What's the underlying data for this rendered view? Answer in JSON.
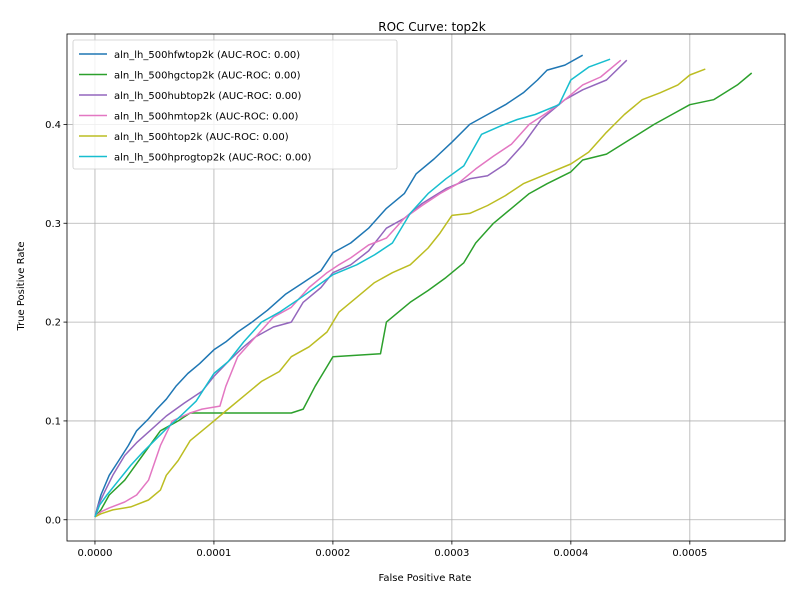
{
  "chart_data": {
    "type": "line",
    "title": "ROC Curve: top2k",
    "xlabel": "False Positive Rate",
    "ylabel": "True Positive Rate",
    "xlim": [
      -2.35e-05,
      0.00058
    ],
    "ylim": [
      -0.0215,
      0.4915
    ],
    "xticks": [
      0.0,
      0.0001,
      0.0002,
      0.0003,
      0.0004,
      0.0005
    ],
    "xtick_labels": [
      "0.0000",
      "0.0001",
      "0.0002",
      "0.0003",
      "0.0004",
      "0.0005"
    ],
    "yticks": [
      0.0,
      0.1,
      0.2,
      0.3,
      0.4
    ],
    "ytick_labels": [
      "0.0",
      "0.1",
      "0.2",
      "0.3",
      "0.4"
    ],
    "grid": true,
    "legend_position": "top-left",
    "series": [
      {
        "name": "aln_lh_500hfwtop2k (AUC-ROC: 0.00)",
        "color": "#1f77b4",
        "points": [
          [
            0.0,
            0.003
          ],
          [
            2e-06,
            0.012
          ],
          [
            5e-06,
            0.025
          ],
          [
            1.2e-05,
            0.045
          ],
          [
            2e-05,
            0.06
          ],
          [
            2.8e-05,
            0.075
          ],
          [
            3.5e-05,
            0.09
          ],
          [
            4.5e-05,
            0.102
          ],
          [
            5.2e-05,
            0.112
          ],
          [
            6e-05,
            0.122
          ],
          [
            6.8e-05,
            0.135
          ],
          [
            7.8e-05,
            0.148
          ],
          [
            8.8e-05,
            0.158
          ],
          [
            0.0001,
            0.172
          ],
          [
            0.00011,
            0.18
          ],
          [
            0.00012,
            0.19
          ],
          [
            0.000132,
            0.2
          ],
          [
            0.000145,
            0.212
          ],
          [
            0.00016,
            0.228
          ],
          [
            0.000175,
            0.24
          ],
          [
            0.00019,
            0.252
          ],
          [
            0.0002,
            0.27
          ],
          [
            0.000215,
            0.28
          ],
          [
            0.00023,
            0.295
          ],
          [
            0.000245,
            0.315
          ],
          [
            0.00026,
            0.33
          ],
          [
            0.00027,
            0.35
          ],
          [
            0.000285,
            0.365
          ],
          [
            0.0003,
            0.382
          ],
          [
            0.000315,
            0.4
          ],
          [
            0.00033,
            0.41
          ],
          [
            0.000345,
            0.42
          ],
          [
            0.00036,
            0.432
          ],
          [
            0.000372,
            0.445
          ],
          [
            0.00038,
            0.455
          ],
          [
            0.000395,
            0.46
          ],
          [
            0.00041,
            0.47
          ]
        ]
      },
      {
        "name": "aln_lh_500hgctop2k (AUC-ROC: 0.00)",
        "color": "#2ca02c",
        "points": [
          [
            0.0,
            0.003
          ],
          [
            5e-06,
            0.01
          ],
          [
            1.2e-05,
            0.025
          ],
          [
            2.5e-05,
            0.04
          ],
          [
            4e-05,
            0.065
          ],
          [
            5.5e-05,
            0.09
          ],
          [
            7e-05,
            0.1
          ],
          [
            8e-05,
            0.108
          ],
          [
            0.0001,
            0.108
          ],
          [
            0.00013,
            0.108
          ],
          [
            0.000165,
            0.108
          ],
          [
            0.000175,
            0.112
          ],
          [
            0.000185,
            0.135
          ],
          [
            0.000195,
            0.155
          ],
          [
            0.0002,
            0.165
          ],
          [
            0.00024,
            0.168
          ],
          [
            0.000245,
            0.2
          ],
          [
            0.000255,
            0.21
          ],
          [
            0.000265,
            0.22
          ],
          [
            0.00028,
            0.232
          ],
          [
            0.000295,
            0.245
          ],
          [
            0.00031,
            0.26
          ],
          [
            0.00032,
            0.28
          ],
          [
            0.000335,
            0.3
          ],
          [
            0.00035,
            0.315
          ],
          [
            0.000365,
            0.33
          ],
          [
            0.00038,
            0.34
          ],
          [
            0.0004,
            0.352
          ],
          [
            0.00041,
            0.364
          ],
          [
            0.00043,
            0.37
          ],
          [
            0.00045,
            0.385
          ],
          [
            0.00047,
            0.4
          ],
          [
            0.000485,
            0.41
          ],
          [
            0.0005,
            0.42
          ],
          [
            0.00052,
            0.425
          ],
          [
            0.00054,
            0.44
          ],
          [
            0.000552,
            0.452
          ]
        ]
      },
      {
        "name": "aln_lh_500hubtop2k (AUC-ROC: 0.00)",
        "color": "#9467bd",
        "points": [
          [
            0.0,
            0.003
          ],
          [
            3e-06,
            0.015
          ],
          [
            8e-06,
            0.028
          ],
          [
            1.5e-05,
            0.045
          ],
          [
            2.5e-05,
            0.065
          ],
          [
            3.5e-05,
            0.078
          ],
          [
            4.8e-05,
            0.092
          ],
          [
            6e-05,
            0.105
          ],
          [
            7.5e-05,
            0.118
          ],
          [
            9e-05,
            0.13
          ],
          [
            0.0001,
            0.145
          ],
          [
            0.000112,
            0.16
          ],
          [
            0.000125,
            0.175
          ],
          [
            0.000135,
            0.185
          ],
          [
            0.00015,
            0.195
          ],
          [
            0.000165,
            0.2
          ],
          [
            0.000175,
            0.22
          ],
          [
            0.00019,
            0.235
          ],
          [
            0.0002,
            0.25
          ],
          [
            0.000215,
            0.258
          ],
          [
            0.00023,
            0.272
          ],
          [
            0.000245,
            0.295
          ],
          [
            0.00026,
            0.305
          ],
          [
            0.000275,
            0.32
          ],
          [
            0.000295,
            0.335
          ],
          [
            0.000315,
            0.345
          ],
          [
            0.00033,
            0.348
          ],
          [
            0.000345,
            0.36
          ],
          [
            0.00036,
            0.38
          ],
          [
            0.000375,
            0.405
          ],
          [
            0.000395,
            0.425
          ],
          [
            0.00041,
            0.435
          ],
          [
            0.00043,
            0.445
          ],
          [
            0.000447,
            0.465
          ]
        ]
      },
      {
        "name": "aln_lh_500hmtop2k (AUC-ROC: 0.00)",
        "color": "#e377c2",
        "points": [
          [
            0.0,
            0.003
          ],
          [
            5e-06,
            0.008
          ],
          [
            1.2e-05,
            0.012
          ],
          [
            2.5e-05,
            0.018
          ],
          [
            3.5e-05,
            0.025
          ],
          [
            4.5e-05,
            0.04
          ],
          [
            5.5e-05,
            0.075
          ],
          [
            6.5e-05,
            0.1
          ],
          [
            8e-05,
            0.108
          ],
          [
            9e-05,
            0.112
          ],
          [
            0.000105,
            0.115
          ],
          [
            0.00011,
            0.135
          ],
          [
            0.00012,
            0.165
          ],
          [
            0.000135,
            0.185
          ],
          [
            0.00015,
            0.205
          ],
          [
            0.000165,
            0.215
          ],
          [
            0.00018,
            0.235
          ],
          [
            0.000195,
            0.25
          ],
          [
            0.000205,
            0.258
          ],
          [
            0.000215,
            0.265
          ],
          [
            0.00023,
            0.278
          ],
          [
            0.000245,
            0.285
          ],
          [
            0.00026,
            0.305
          ],
          [
            0.000275,
            0.318
          ],
          [
            0.00029,
            0.33
          ],
          [
            0.000305,
            0.34
          ],
          [
            0.00032,
            0.355
          ],
          [
            0.000335,
            0.368
          ],
          [
            0.00035,
            0.38
          ],
          [
            0.000365,
            0.4
          ],
          [
            0.00038,
            0.412
          ],
          [
            0.000395,
            0.425
          ],
          [
            0.00041,
            0.44
          ],
          [
            0.000425,
            0.448
          ],
          [
            0.000442,
            0.465
          ]
        ]
      },
      {
        "name": "aln_lh_500htop2k (AUC-ROC: 0.00)",
        "color": "#bcbd22",
        "points": [
          [
            0.0,
            0.003
          ],
          [
            5e-06,
            0.006
          ],
          [
            1.5e-05,
            0.01
          ],
          [
            3e-05,
            0.013
          ],
          [
            4.5e-05,
            0.02
          ],
          [
            5.5e-05,
            0.03
          ],
          [
            6e-05,
            0.045
          ],
          [
            7e-05,
            0.06
          ],
          [
            8e-05,
            0.08
          ],
          [
            9.5e-05,
            0.095
          ],
          [
            0.00011,
            0.11
          ],
          [
            0.000125,
            0.125
          ],
          [
            0.00014,
            0.14
          ],
          [
            0.000155,
            0.15
          ],
          [
            0.000165,
            0.165
          ],
          [
            0.00018,
            0.175
          ],
          [
            0.000195,
            0.19
          ],
          [
            0.000205,
            0.21
          ],
          [
            0.00022,
            0.225
          ],
          [
            0.000235,
            0.24
          ],
          [
            0.00025,
            0.25
          ],
          [
            0.000265,
            0.258
          ],
          [
            0.00028,
            0.275
          ],
          [
            0.00029,
            0.29
          ],
          [
            0.0003,
            0.308
          ],
          [
            0.000315,
            0.31
          ],
          [
            0.00033,
            0.318
          ],
          [
            0.000345,
            0.328
          ],
          [
            0.00036,
            0.34
          ],
          [
            0.00038,
            0.35
          ],
          [
            0.0004,
            0.36
          ],
          [
            0.000415,
            0.372
          ],
          [
            0.00043,
            0.392
          ],
          [
            0.000445,
            0.41
          ],
          [
            0.00046,
            0.425
          ],
          [
            0.000475,
            0.432
          ],
          [
            0.00049,
            0.44
          ],
          [
            0.0005,
            0.45
          ],
          [
            0.000513,
            0.456
          ]
        ]
      },
      {
        "name": "aln_lh_500hprogtop2k (AUC-ROC: 0.00)",
        "color": "#17becf",
        "points": [
          [
            0.0,
            0.003
          ],
          [
            4e-06,
            0.015
          ],
          [
            1e-05,
            0.025
          ],
          [
            2e-05,
            0.04
          ],
          [
            3e-05,
            0.055
          ],
          [
            4e-05,
            0.068
          ],
          [
            5e-05,
            0.08
          ],
          [
            6e-05,
            0.092
          ],
          [
            7.2e-05,
            0.105
          ],
          [
            8.5e-05,
            0.12
          ],
          [
            0.0001,
            0.148
          ],
          [
            0.000112,
            0.16
          ],
          [
            0.000125,
            0.18
          ],
          [
            0.00014,
            0.2
          ],
          [
            0.000155,
            0.21
          ],
          [
            0.00017,
            0.222
          ],
          [
            0.000185,
            0.235
          ],
          [
            0.0002,
            0.248
          ],
          [
            0.00022,
            0.258
          ],
          [
            0.000235,
            0.268
          ],
          [
            0.00025,
            0.28
          ],
          [
            0.000265,
            0.31
          ],
          [
            0.00028,
            0.33
          ],
          [
            0.000295,
            0.345
          ],
          [
            0.00031,
            0.358
          ],
          [
            0.000325,
            0.39
          ],
          [
            0.00034,
            0.398
          ],
          [
            0.000355,
            0.405
          ],
          [
            0.00037,
            0.41
          ],
          [
            0.00039,
            0.42
          ],
          [
            0.0004,
            0.445
          ],
          [
            0.000415,
            0.458
          ],
          [
            0.000433,
            0.466
          ]
        ]
      }
    ]
  }
}
